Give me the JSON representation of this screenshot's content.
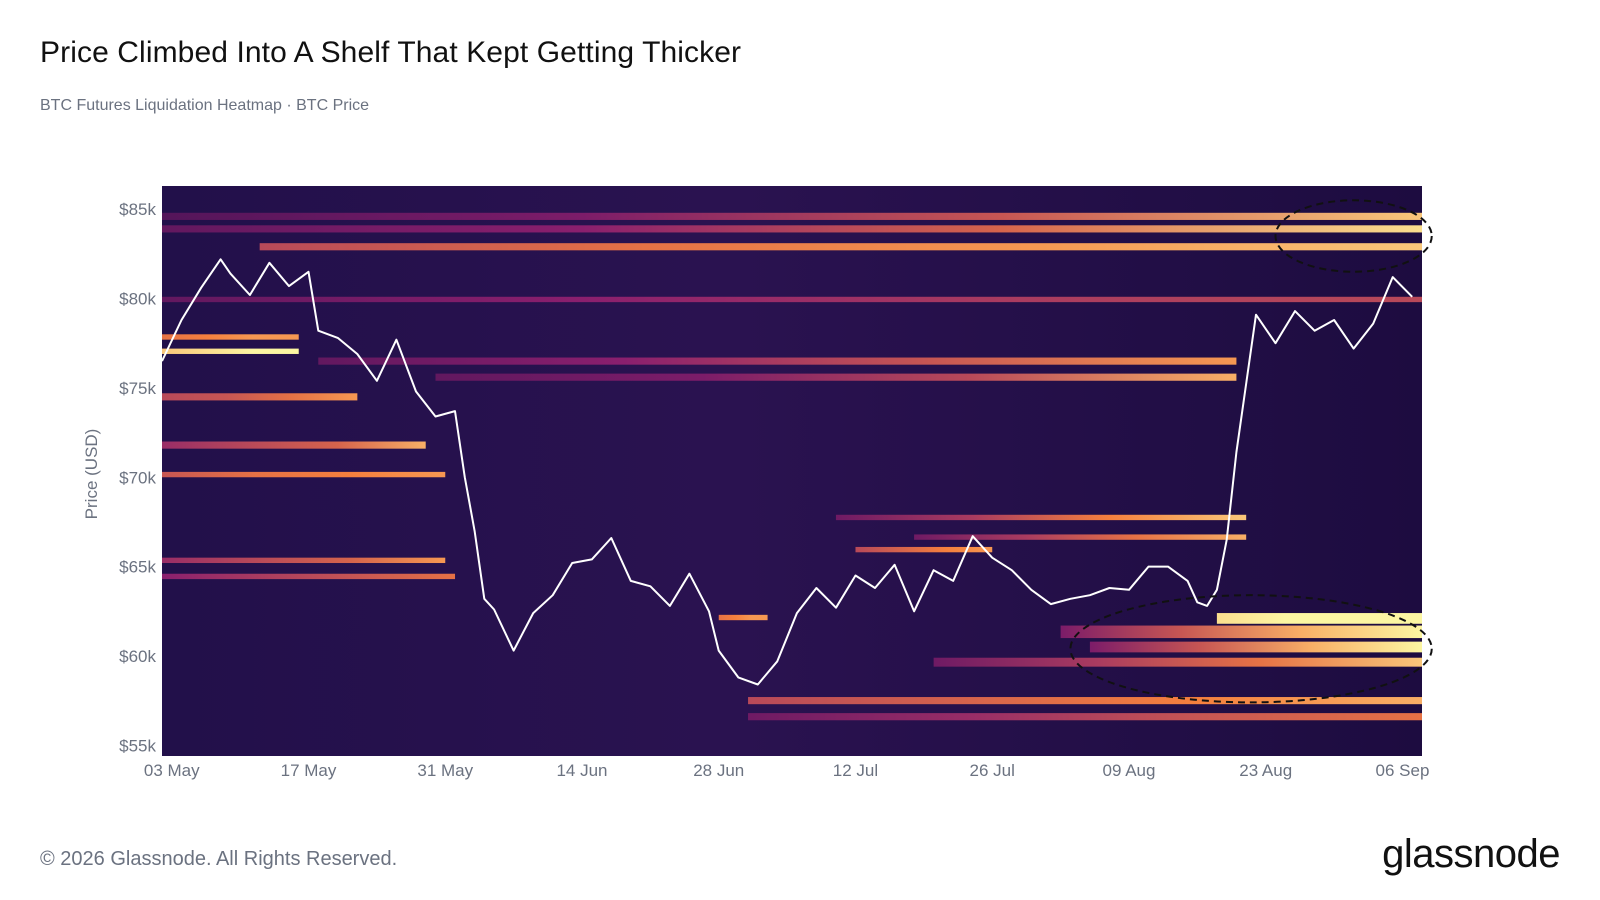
{
  "header": {
    "title": "Price Climbed Into A Shelf That Kept Getting Thicker",
    "subtitle": "BTC Futures Liquidation Heatmap · BTC Price"
  },
  "footer": {
    "copyright": "© 2026 Glassnode. All Rights Reserved.",
    "logo_text": "glassnode"
  },
  "colors": {
    "heatmap_low": "#1e0b45",
    "heatmap_mid": "#8a1f6e",
    "heatmap_high": "#f5803e",
    "heatmap_max": "#fcf6a2",
    "price_line": "#ffffff",
    "annotation_ellipse": "#111111"
  },
  "chart_data": {
    "type": "heatmap",
    "title": "Price Climbed Into A Shelf That Kept Getting Thicker",
    "subtitle": "BTC Futures Liquidation Heatmap · BTC Price",
    "xlabel": "",
    "ylabel": "Price (USD)",
    "xlim": [
      "2024-05-02",
      "2024-09-08"
    ],
    "ylim": [
      54400,
      86300
    ],
    "x_ticks": [
      "03 May",
      "17 May",
      "31 May",
      "14 Jun",
      "28 Jun",
      "12 Jul",
      "26 Jul",
      "09 Aug",
      "23 Aug",
      "06 Sep"
    ],
    "y_ticks": [
      {
        "value": 55000,
        "label": "$55k"
      },
      {
        "value": 60000,
        "label": "$60k"
      },
      {
        "value": 65000,
        "label": "$65k"
      },
      {
        "value": 70000,
        "label": "$70k"
      },
      {
        "value": 75000,
        "label": "$75k"
      },
      {
        "value": 80000,
        "label": "$80k"
      },
      {
        "value": 85000,
        "label": "$85k"
      }
    ],
    "grid": false,
    "legend": "none",
    "series": [
      {
        "name": "BTC Price",
        "type": "line",
        "color": "#ffffff",
        "x": [
          "2024-05-02",
          "2024-05-04",
          "2024-05-06",
          "2024-05-08",
          "2024-05-09",
          "2024-05-11",
          "2024-05-13",
          "2024-05-15",
          "2024-05-17",
          "2024-05-18",
          "2024-05-20",
          "2024-05-22",
          "2024-05-24",
          "2024-05-26",
          "2024-05-28",
          "2024-05-30",
          "2024-06-01",
          "2024-06-02",
          "2024-06-03",
          "2024-06-04",
          "2024-06-05",
          "2024-06-07",
          "2024-06-09",
          "2024-06-11",
          "2024-06-13",
          "2024-06-15",
          "2024-06-17",
          "2024-06-19",
          "2024-06-21",
          "2024-06-23",
          "2024-06-25",
          "2024-06-27",
          "2024-06-28",
          "2024-06-30",
          "2024-07-02",
          "2024-07-04",
          "2024-07-06",
          "2024-07-08",
          "2024-07-10",
          "2024-07-12",
          "2024-07-14",
          "2024-07-16",
          "2024-07-18",
          "2024-07-20",
          "2024-07-22",
          "2024-07-24",
          "2024-07-26",
          "2024-07-28",
          "2024-07-30",
          "2024-08-01",
          "2024-08-03",
          "2024-08-05",
          "2024-08-07",
          "2024-08-09",
          "2024-08-11",
          "2024-08-13",
          "2024-08-15",
          "2024-08-16",
          "2024-08-17",
          "2024-08-18",
          "2024-08-19",
          "2024-08-20",
          "2024-08-22",
          "2024-08-24",
          "2024-08-26",
          "2024-08-28",
          "2024-08-30",
          "2024-09-01",
          "2024-09-03",
          "2024-09-05",
          "2024-09-07"
        ],
        "y": [
          76500,
          78800,
          80600,
          82200,
          81400,
          80200,
          82000,
          80700,
          81500,
          78200,
          77800,
          76900,
          75400,
          77700,
          74800,
          73400,
          73700,
          70000,
          67000,
          63200,
          62600,
          60300,
          62400,
          63400,
          65200,
          65400,
          66600,
          64200,
          63900,
          62800,
          64600,
          62500,
          60300,
          58800,
          58400,
          59700,
          62400,
          63800,
          62700,
          64500,
          63800,
          65100,
          62500,
          64800,
          64200,
          66700,
          65500,
          64800,
          63700,
          62900,
          63200,
          63400,
          63800,
          63700,
          65000,
          65000,
          64200,
          63000,
          62800,
          63700,
          66500,
          71400,
          79100,
          77500,
          79300,
          78200,
          78800,
          77200,
          78600,
          81200,
          80100
        ]
      }
    ],
    "heatmap_bands": [
      {
        "price_low": 84400,
        "price_high": 84800,
        "start": "2024-05-02",
        "end": "2024-09-08",
        "intensity": [
          0.2,
          0.35,
          0.6,
          0.9
        ]
      },
      {
        "price_low": 83700,
        "price_high": 84100,
        "start": "2024-05-02",
        "end": "2024-09-08",
        "intensity": [
          0.25,
          0.4,
          0.65,
          0.95
        ]
      },
      {
        "price_low": 82700,
        "price_high": 83100,
        "start": "2024-05-12",
        "end": "2024-09-08",
        "intensity": [
          0.55,
          0.7,
          0.8,
          0.9
        ]
      },
      {
        "price_low": 79800,
        "price_high": 80100,
        "start": "2024-05-02",
        "end": "2024-09-08",
        "intensity": [
          0.25,
          0.4,
          0.5,
          0.55
        ]
      },
      {
        "price_low": 77700,
        "price_high": 78000,
        "start": "2024-05-02",
        "end": "2024-05-16",
        "intensity": [
          0.7,
          0.75,
          0.8,
          0.8
        ]
      },
      {
        "price_low": 76900,
        "price_high": 77200,
        "start": "2024-05-02",
        "end": "2024-05-16",
        "intensity": [
          0.9,
          0.95,
          1.0,
          1.0
        ]
      },
      {
        "price_low": 76300,
        "price_high": 76700,
        "start": "2024-05-18",
        "end": "2024-08-20",
        "intensity": [
          0.25,
          0.4,
          0.6,
          0.8
        ]
      },
      {
        "price_low": 75400,
        "price_high": 75800,
        "start": "2024-05-30",
        "end": "2024-08-20",
        "intensity": [
          0.25,
          0.35,
          0.55,
          0.85
        ]
      },
      {
        "price_low": 74300,
        "price_high": 74700,
        "start": "2024-05-02",
        "end": "2024-05-22",
        "intensity": [
          0.55,
          0.6,
          0.7,
          0.8
        ]
      },
      {
        "price_low": 71600,
        "price_high": 72000,
        "start": "2024-05-02",
        "end": "2024-05-29",
        "intensity": [
          0.45,
          0.55,
          0.65,
          0.85
        ]
      },
      {
        "price_low": 70000,
        "price_high": 70300,
        "start": "2024-05-02",
        "end": "2024-05-31",
        "intensity": [
          0.6,
          0.7,
          0.75,
          0.8
        ]
      },
      {
        "price_low": 67600,
        "price_high": 67900,
        "start": "2024-07-10",
        "end": "2024-08-21",
        "intensity": [
          0.3,
          0.5,
          0.75,
          0.9
        ]
      },
      {
        "price_low": 66500,
        "price_high": 66800,
        "start": "2024-07-18",
        "end": "2024-08-21",
        "intensity": [
          0.3,
          0.5,
          0.7,
          0.85
        ]
      },
      {
        "price_low": 65800,
        "price_high": 66100,
        "start": "2024-07-12",
        "end": "2024-07-26",
        "intensity": [
          0.55,
          0.65,
          0.75,
          0.8
        ]
      },
      {
        "price_low": 65200,
        "price_high": 65500,
        "start": "2024-05-02",
        "end": "2024-05-31",
        "intensity": [
          0.45,
          0.55,
          0.65,
          0.8
        ]
      },
      {
        "price_low": 64300,
        "price_high": 64600,
        "start": "2024-05-02",
        "end": "2024-06-01",
        "intensity": [
          0.4,
          0.5,
          0.6,
          0.7
        ]
      },
      {
        "price_low": 62000,
        "price_high": 62300,
        "start": "2024-06-28",
        "end": "2024-07-03",
        "intensity": [
          0.7,
          0.75,
          0.8,
          0.8
        ]
      },
      {
        "price_low": 61800,
        "price_high": 62400,
        "start": "2024-08-18",
        "end": "2024-09-08",
        "intensity": [
          0.95,
          1.0,
          1.0,
          1.0
        ]
      },
      {
        "price_low": 61000,
        "price_high": 61700,
        "start": "2024-08-02",
        "end": "2024-09-08",
        "intensity": [
          0.35,
          0.6,
          0.85,
          1.0
        ]
      },
      {
        "price_low": 60200,
        "price_high": 60800,
        "start": "2024-08-05",
        "end": "2024-09-08",
        "intensity": [
          0.35,
          0.6,
          0.85,
          1.0
        ]
      },
      {
        "price_low": 59400,
        "price_high": 59900,
        "start": "2024-07-20",
        "end": "2024-09-08",
        "intensity": [
          0.3,
          0.5,
          0.7,
          0.9
        ]
      },
      {
        "price_low": 57300,
        "price_high": 57700,
        "start": "2024-07-01",
        "end": "2024-09-08",
        "intensity": [
          0.55,
          0.65,
          0.75,
          0.85
        ]
      },
      {
        "price_low": 56400,
        "price_high": 56800,
        "start": "2024-07-01",
        "end": "2024-09-08",
        "intensity": [
          0.3,
          0.45,
          0.6,
          0.7
        ]
      }
    ],
    "annotations": [
      {
        "type": "dashed-ellipse",
        "date_start": "2024-08-24",
        "date_end": "2024-09-09",
        "price_low": 81500,
        "price_high": 85500
      },
      {
        "type": "dashed-ellipse",
        "date_start": "2024-08-03",
        "date_end": "2024-09-09",
        "price_low": 57400,
        "price_high": 63400
      }
    ]
  }
}
